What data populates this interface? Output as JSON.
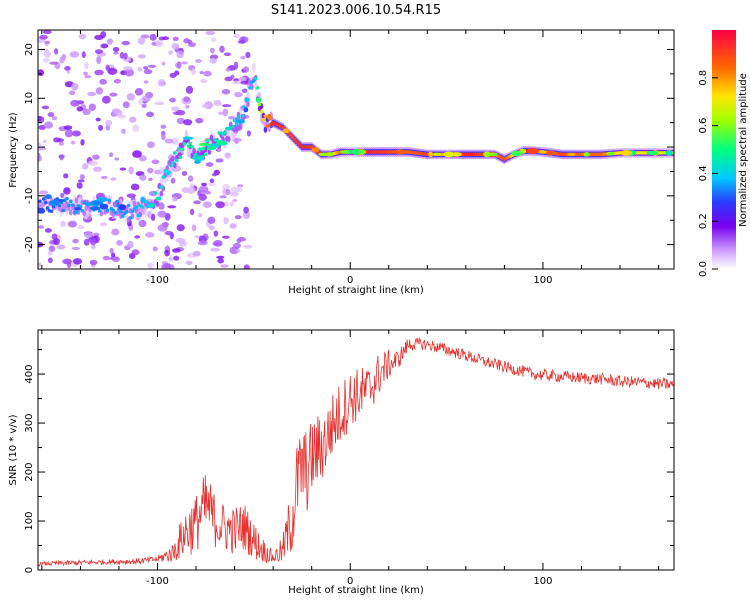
{
  "title": "S141.2023.006.10.54.R15",
  "chart_data": [
    {
      "type": "heatmap",
      "xlabel": "Height of straight line (km)",
      "ylabel": "Frequency (Hz)",
      "xlim": [
        -162,
        168
      ],
      "ylim": [
        -25,
        24
      ],
      "x_ticks": [
        -100,
        0,
        100
      ],
      "y_ticks": [
        -20,
        -10,
        0,
        10,
        20
      ],
      "colorbar": {
        "label": "Normalized spectral amplitude",
        "range": [
          0.0,
          1.0
        ],
        "ticks": [
          "0.0",
          "0.2",
          "0.4",
          "0.6",
          "0.8"
        ],
        "colors": [
          "#ffffff",
          "#cc99ff",
          "#7700ee",
          "#2a3bff",
          "#00c8ff",
          "#00ff80",
          "#9cff00",
          "#ffe600",
          "#ff6a00",
          "#ff0044"
        ]
      },
      "ridge": {
        "x": [
          -155,
          -145,
          -135,
          -125,
          -115,
          -105,
          -100,
          -95,
          -90,
          -85,
          -80,
          -75,
          -70,
          -65,
          -60,
          -55,
          -50,
          -45,
          -40,
          -35,
          -30,
          -25,
          -20,
          -15,
          -10,
          -5,
          0,
          10,
          20,
          30,
          40,
          50,
          60,
          70,
          75,
          80,
          85,
          90,
          95,
          100,
          110,
          120,
          130,
          140,
          150,
          160,
          166
        ],
        "freq": [
          -12,
          -12,
          -12.5,
          -12,
          -13.5,
          -12,
          -10.5,
          -5,
          -2,
          1,
          -3,
          0,
          1,
          2,
          4,
          7,
          15,
          5,
          5,
          4,
          2,
          0,
          0,
          -1.5,
          -1.5,
          -1,
          -1,
          -1,
          -1,
          -1,
          -1.5,
          -1.5,
          -1.5,
          -1.5,
          -1.5,
          -2.5,
          -1.5,
          -0.8,
          -0.8,
          -1,
          -1.5,
          -1.5,
          -1.5,
          -1.2,
          -1.2,
          -1.2,
          -1.2
        ],
        "amp": [
          0.3,
          0.35,
          0.35,
          0.35,
          0.35,
          0.4,
          0.45,
          0.4,
          0.45,
          0.5,
          0.45,
          0.5,
          0.45,
          0.45,
          0.4,
          0.4,
          0.35,
          0.75,
          0.95,
          0.9,
          0.9,
          0.95,
          0.9,
          0.9,
          0.65,
          0.85,
          0.6,
          0.95,
          0.9,
          0.85,
          0.9,
          0.75,
          0.95,
          0.9,
          0.8,
          0.9,
          0.7,
          0.9,
          0.9,
          0.8,
          0.9,
          0.85,
          0.85,
          0.7,
          0.7,
          0.7,
          0.6
        ]
      }
    },
    {
      "type": "line",
      "xlabel": "Height of straight line (km)",
      "ylabel": "SNR (10 * v/v)",
      "xlim": [
        -162,
        168
      ],
      "ylim": [
        0,
        490
      ],
      "x_ticks": [
        -100,
        0,
        100
      ],
      "y_ticks": [
        0,
        100,
        200,
        300,
        400
      ],
      "series": [
        {
          "color": "#e8312e",
          "x": [
            -162,
            -150,
            -130,
            -110,
            -100,
            -92,
            -85,
            -80,
            -77,
            -74,
            -70,
            -65,
            -60,
            -55,
            -50,
            -45,
            -40,
            -35,
            -30,
            -28,
            -25,
            -22,
            -20,
            -15,
            -12,
            -10,
            -5,
            0,
            5,
            10,
            15,
            20,
            25,
            30,
            35,
            40,
            50,
            60,
            70,
            80,
            90,
            95,
            100,
            110,
            120,
            130,
            140,
            150,
            160,
            168
          ],
          "y": [
            12,
            14,
            16,
            18,
            22,
            35,
            80,
            95,
            120,
            130,
            100,
            85,
            80,
            90,
            60,
            40,
            25,
            40,
            110,
            170,
            210,
            200,
            230,
            250,
            270,
            290,
            320,
            350,
            360,
            370,
            400,
            420,
            430,
            460,
            462,
            460,
            450,
            438,
            425,
            415,
            405,
            400,
            398,
            395,
            392,
            390,
            385,
            383,
            380,
            378
          ],
          "noise": [
            4,
            5,
            5,
            6,
            7,
            20,
            55,
            60,
            70,
            70,
            55,
            50,
            50,
            50,
            40,
            25,
            12,
            30,
            80,
            90,
            90,
            85,
            80,
            75,
            70,
            70,
            65,
            60,
            55,
            50,
            45,
            30,
            20,
            15,
            12,
            12,
            12,
            12,
            12,
            12,
            12,
            12,
            12,
            12,
            12,
            12,
            12,
            12,
            12,
            12
          ]
        }
      ]
    }
  ]
}
